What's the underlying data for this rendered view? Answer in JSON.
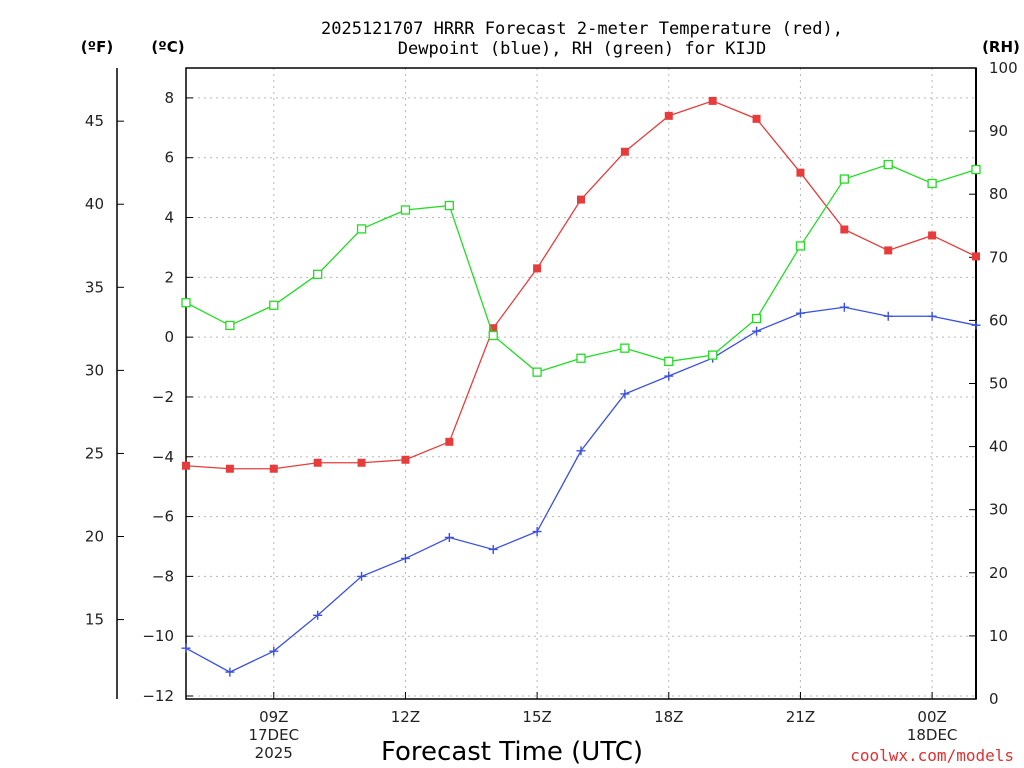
{
  "chart_data": {
    "type": "line",
    "title_line1": "2025121707 HRRR Forecast 2-meter Temperature (red),",
    "title_line2": "Dewpoint (blue), RH (green) for KIJD",
    "xlabel": "Forecast Time (UTC)",
    "units": {
      "fahrenheit": "(ºF)",
      "celsius": "(ºC)",
      "rh": "(RH)"
    },
    "credit": "coolwx.com/models",
    "x_hours": [
      7,
      8,
      9,
      10,
      11,
      12,
      13,
      14,
      15,
      16,
      17,
      18,
      19,
      20,
      21,
      22,
      23,
      24,
      25
    ],
    "xlim": [
      7,
      25
    ],
    "x_ticks": [
      {
        "x": 9,
        "lines": [
          "09Z",
          "17DEC",
          "2025"
        ]
      },
      {
        "x": 12,
        "lines": [
          "12Z"
        ]
      },
      {
        "x": 15,
        "lines": [
          "15Z"
        ]
      },
      {
        "x": 18,
        "lines": [
          "18Z"
        ]
      },
      {
        "x": 21,
        "lines": [
          "21Z"
        ]
      },
      {
        "x": 24,
        "lines": [
          "00Z",
          "18DEC"
        ]
      }
    ],
    "y_celsius": {
      "lim": [
        -12.1,
        9.0
      ],
      "ticks": [
        "8",
        "6",
        "4",
        "2",
        "0",
        "−2",
        "−4",
        "−6",
        "−8",
        "−10",
        "−12"
      ],
      "tick_values": [
        8,
        6,
        4,
        2,
        0,
        -2,
        -4,
        -6,
        -8,
        -10,
        -12
      ]
    },
    "y_fahrenheit": {
      "ticks": [
        "45",
        "40",
        "35",
        "30",
        "25",
        "20",
        "15"
      ],
      "tick_values": [
        45,
        40,
        35,
        30,
        25,
        20,
        15
      ]
    },
    "y_rh": {
      "lim": [
        0,
        100
      ],
      "ticks": [
        "100",
        "90",
        "80",
        "70",
        "60",
        "50",
        "40",
        "30",
        "20",
        "10",
        "0"
      ],
      "tick_values": [
        100,
        90,
        80,
        70,
        60,
        50,
        40,
        30,
        20,
        10,
        0
      ]
    },
    "series": [
      {
        "name": "Temperature",
        "color": "#e63c3c",
        "marker": "filled-square",
        "axis": "celsius",
        "values": [
          -4.3,
          -4.4,
          -4.4,
          -4.2,
          -4.2,
          -4.1,
          -3.5,
          0.3,
          2.3,
          4.6,
          6.2,
          7.4,
          7.9,
          7.3,
          5.5,
          3.6,
          2.9,
          3.4,
          2.7
        ]
      },
      {
        "name": "Dewpoint",
        "color": "#3a50e0",
        "marker": "plus",
        "axis": "celsius",
        "values": [
          -10.4,
          -11.2,
          -10.5,
          -9.3,
          -8.0,
          -7.4,
          -6.7,
          -7.1,
          -6.5,
          -3.8,
          -1.9,
          -1.3,
          -0.7,
          0.2,
          0.8,
          1.0,
          0.7,
          0.7,
          0.4
        ]
      },
      {
        "name": "RH",
        "color": "#22dd22",
        "marker": "open-square",
        "axis": "rh",
        "values": [
          62.8,
          59.2,
          62.4,
          67.3,
          74.5,
          77.5,
          78.2,
          57.6,
          51.8,
          54.0,
          55.6,
          53.5,
          54.5,
          60.3,
          71.8,
          82.4,
          84.7,
          81.7,
          83.9
        ]
      }
    ]
  }
}
